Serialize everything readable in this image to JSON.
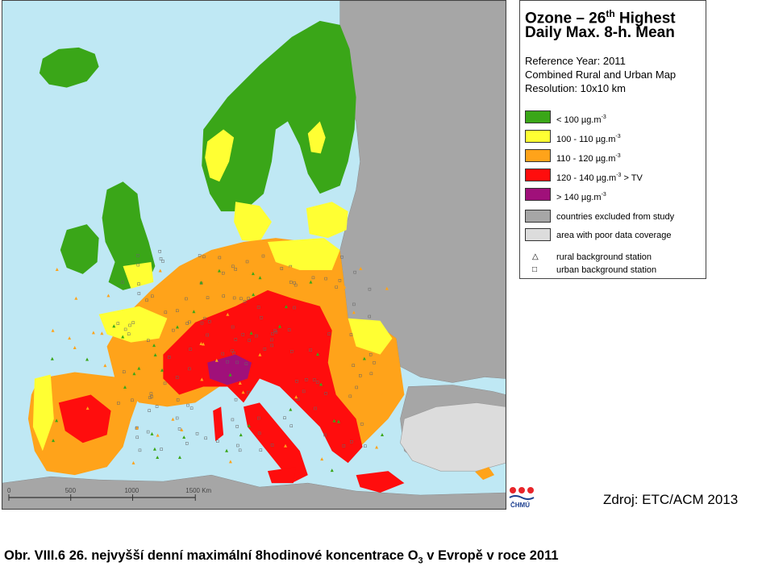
{
  "map": {
    "title": "Ozone – 26th Highest Daily Max. 8-h. Mean",
    "title_line1_a": "Ozone – 26",
    "title_line1_sup": "th",
    "title_line1_b": " Highest",
    "title_line2": "Daily Max. 8-h. Mean",
    "reference_year": "Reference Year: 2011",
    "map_type": "Combined Rural and Urban Map",
    "resolution": "Resolution: 10x10 km",
    "colors": {
      "sea": "#bfe8f4",
      "excluded": "#a6a6a6",
      "poor_coverage": "#dcdcdc",
      "below_100": "#3aa618",
      "100_110": "#ffff33",
      "110_120": "#ffa31a",
      "120_140": "#ff0d0d",
      "above_140": "#a0107a"
    },
    "legend": [
      {
        "label": "<  100  µg.m",
        "unit_sup": "-3",
        "suffix": "",
        "color": "#3aa618"
      },
      {
        "label": "100 - 110  µg.m",
        "unit_sup": "-3",
        "suffix": "",
        "color": "#ffff33"
      },
      {
        "label": "110 - 120  µg.m",
        "unit_sup": "-3",
        "suffix": "",
        "color": "#ffa31a"
      },
      {
        "label": "120 - 140  µg.m",
        "unit_sup": "-3",
        "suffix": "  > TV",
        "color": "#ff0d0d"
      },
      {
        "label": ">  140  µg.m",
        "unit_sup": "-3",
        "suffix": "",
        "color": "#a0107a"
      }
    ],
    "excluded_label": "countries excluded from study",
    "poor_coverage_label": "area with poor data coverage",
    "rural_station_label": "rural background station",
    "urban_station_label": "urban background station",
    "rural_symbol": "△",
    "urban_symbol": "□",
    "scale_bar": {
      "ticks": [
        "0",
        "500",
        "1000",
        "1500 Km"
      ]
    }
  },
  "source": "Zdroj: ETC/ACM 2013",
  "logo_text": "ČHMÚ",
  "caption": {
    "prefix": "Obr. VIII.6  26. nejvyšší denní maximální 8hodinové koncentrace O",
    "subscript": "3",
    "suffix": " v Evropě v roce 2011"
  }
}
